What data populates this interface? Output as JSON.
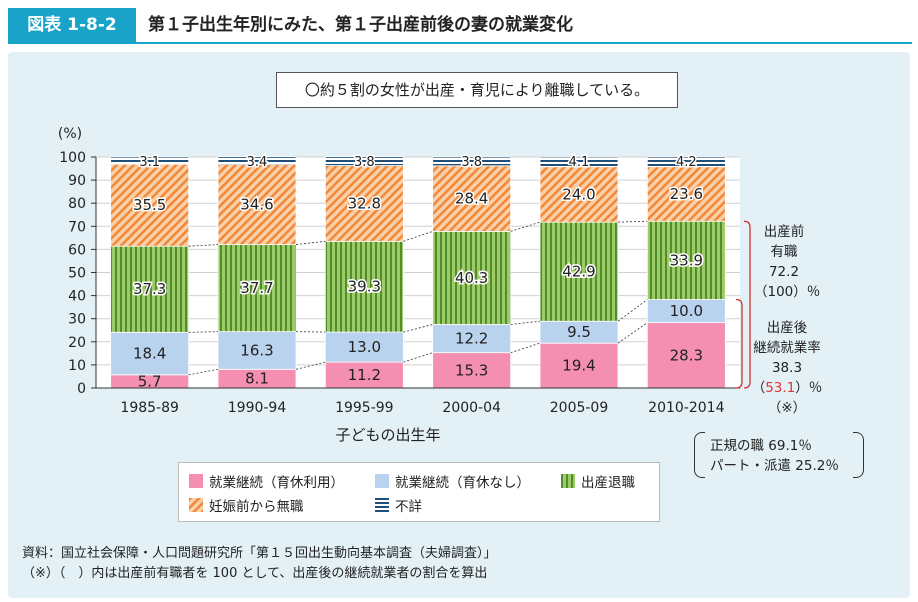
{
  "header": {
    "badge": "図表 1-8-2",
    "title": "第１子出生年別にみた、第１子出産前後の妻の就業変化"
  },
  "summary": "〇約５割の女性が出産・育児により離職している。",
  "chart_data": {
    "type": "bar",
    "stacked": true,
    "title": "",
    "xlabel": "子どもの出生年",
    "ylabel": "(%)",
    "ylim": [
      0,
      100
    ],
    "yticks": [
      0,
      10,
      20,
      30,
      40,
      50,
      60,
      70,
      80,
      90,
      100
    ],
    "categories": [
      "1985-89",
      "1990-94",
      "1995-99",
      "2000-04",
      "2005-09",
      "2010-2014"
    ],
    "series": [
      {
        "name": "就業継続（育休利用）",
        "color": "#f48fb1",
        "pattern": "solid",
        "values": [
          5.7,
          8.1,
          11.2,
          15.3,
          19.4,
          28.3
        ]
      },
      {
        "name": "就業継続（育休なし）",
        "color": "#b9d3ee",
        "pattern": "solid",
        "values": [
          18.4,
          16.3,
          13.0,
          12.2,
          9.5,
          10.0
        ]
      },
      {
        "name": "出産退職",
        "color": "#7cb342",
        "pattern": "vertical-stripes",
        "values": [
          37.3,
          37.7,
          39.3,
          40.3,
          42.9,
          33.9
        ]
      },
      {
        "name": "妊娠前から無職",
        "color": "#f0883a",
        "pattern": "diagonal-stripes",
        "values": [
          35.5,
          34.6,
          32.8,
          28.4,
          24.0,
          23.6
        ]
      },
      {
        "name": "不詳",
        "color": "#1f4e79",
        "pattern": "horizontal-stripes",
        "values": [
          3.1,
          3.4,
          3.8,
          3.8,
          4.1,
          4.2
        ]
      }
    ],
    "value_labels": [
      [
        "5.7",
        "18.4",
        "37.3",
        "35.5",
        "3.1"
      ],
      [
        "8.1",
        "16.3",
        "37.7",
        "34.6",
        "3.4"
      ],
      [
        "11.2",
        "13.0",
        "39.3",
        "32.8",
        "3.8"
      ],
      [
        "15.3",
        "12.2",
        "40.3",
        "28.4",
        "3.8"
      ],
      [
        "19.4",
        "9.5",
        "42.9",
        "24.0",
        "4.1"
      ],
      [
        "28.3",
        "10.0",
        "33.9",
        "23.6",
        "4.2"
      ]
    ],
    "legend_position": "bottom"
  },
  "side": {
    "pre_label_1": "出産前",
    "pre_label_2": "有職",
    "pre_value": "72.2",
    "pre_paren": "（100）％",
    "post_label_1": "出産後",
    "post_label_2": "継続就業率",
    "post_value": "38.3",
    "post_ratio": "53.1",
    "post_ratio_open": "（",
    "post_ratio_close": "）％",
    "post_note": "（※）"
  },
  "breakdown": {
    "regular": "正規の職 69.1％",
    "part": "パート・派遣 25.2％"
  },
  "notes": {
    "source": "資料：国立社会保障・人口問題研究所「第１５回出生動向基本調査（夫婦調査）」",
    "footnote": "（※）（　）内は出産前有職者を 100 として、出産後の継続就業者の割合を算出"
  }
}
